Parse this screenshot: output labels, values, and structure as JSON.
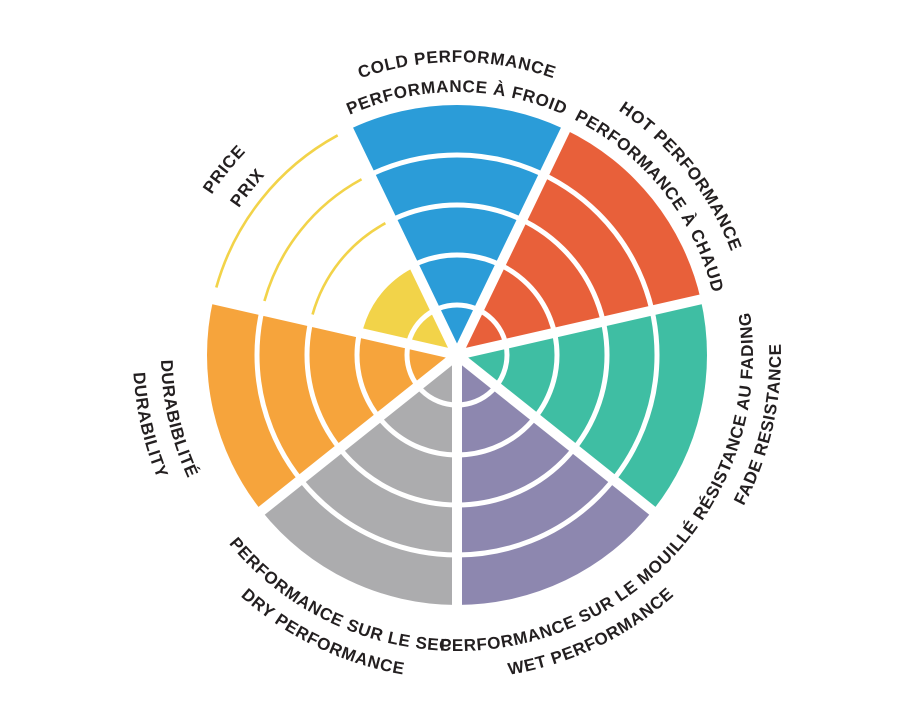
{
  "page": {
    "background": "#FFFFFF",
    "text_color": "#231F20"
  },
  "chart_data": {
    "type": "bar",
    "subtype": "polar-sector-wheel",
    "title": "",
    "scale": {
      "rings": 5,
      "min": 0,
      "max": 5
    },
    "grid": "white concentric ring dividers at each unit, white radial gaps between sectors",
    "legend_position": "bilingual curved labels around wheel rim",
    "categories": [
      "COLD PERFORMANCE / PERFORMANCE À FROID",
      "HOT PERFORMANCE / PERFORMANCE À CHAUD",
      "RÉSISTANCE AU FADING / FADE RESISTANCE",
      "PERFORMANCE SUR LE MOUILLÉ / WET PERFORMANCE",
      "PERFORMANCE SUR LE SEC / DRY PERFORMANCE",
      "DURABIBLITÉ / DURABILITY",
      "PRICE / PRIX"
    ],
    "values": [
      5,
      5,
      5,
      5,
      5,
      5,
      2
    ],
    "sectors": [
      {
        "id": "cold-performance",
        "label_en": "COLD PERFORMANCE",
        "label_fr": "PERFORMANCE À FROID",
        "value": 5,
        "color": "#2B9CD8",
        "label_style": "cw",
        "unfilled_rings_outlined": false
      },
      {
        "id": "hot-performance",
        "label_en": "HOT PERFORMANCE",
        "label_fr": "PERFORMANCE À CHAUD",
        "value": 5,
        "color": "#E8603A",
        "label_style": "cw",
        "unfilled_rings_outlined": false
      },
      {
        "id": "fade-resistance",
        "label_en": "FADE RESISTANCE",
        "label_fr": "RÉSISTANCE AU FADING",
        "value": 5,
        "color": "#3FBEA3",
        "label_style": "ccw",
        "unfilled_rings_outlined": false
      },
      {
        "id": "wet-performance",
        "label_en": "WET PERFORMANCE",
        "label_fr": "PERFORMANCE SUR LE MOUILLÉ",
        "value": 5,
        "color": "#8D87AF",
        "label_style": "ccw",
        "unfilled_rings_outlined": false
      },
      {
        "id": "dry-performance",
        "label_en": "DRY PERFORMANCE",
        "label_fr": "PERFORMANCE SUR LE SEC",
        "value": 5,
        "color": "#ACACAE",
        "label_style": "ccw",
        "unfilled_rings_outlined": false
      },
      {
        "id": "durability",
        "label_en": "DURABILITY",
        "label_fr": "DURABIBLITÉ",
        "value": 5,
        "color": "#F6A43C",
        "label_style": "ccw",
        "unfilled_rings_outlined": false
      },
      {
        "id": "price",
        "label_en": "PRICE",
        "label_fr": "PRIX",
        "value": 2,
        "color": "#F2D349",
        "label_style": "cw",
        "unfilled_rings_outlined": true
      }
    ]
  }
}
